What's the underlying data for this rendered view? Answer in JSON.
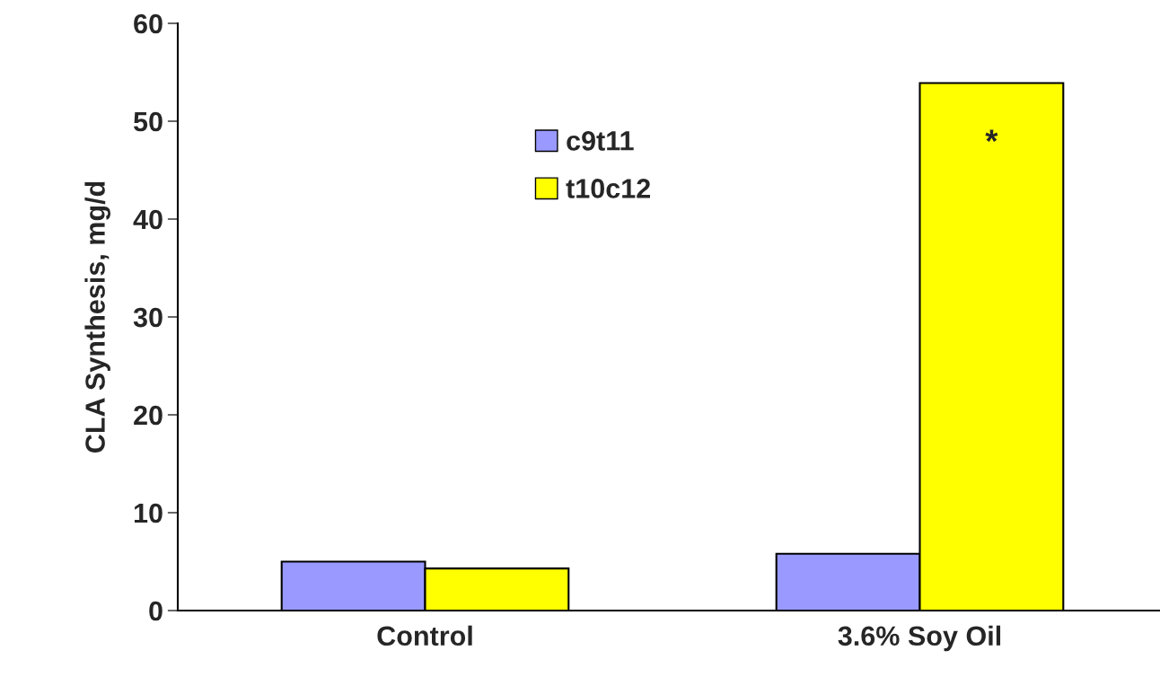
{
  "chart_data": {
    "type": "bar",
    "ylabel": "CLA Synthesis, mg/d",
    "categories": [
      "Control",
      "3.6% Soy Oil"
    ],
    "series": [
      {
        "name": "c9t11",
        "color": "#9999ff",
        "values": [
          5.0,
          5.8
        ]
      },
      {
        "name": "t10c12",
        "color": "#ffff00",
        "values": [
          4.3,
          53.9
        ]
      }
    ],
    "ylim": [
      0,
      60
    ],
    "yticks": [
      0,
      10,
      20,
      30,
      40,
      50,
      60
    ],
    "annotations": [
      {
        "text": "*",
        "x": "3.6% Soy Oil",
        "y": 47.7
      }
    ],
    "legend": "top",
    "grid": false
  }
}
